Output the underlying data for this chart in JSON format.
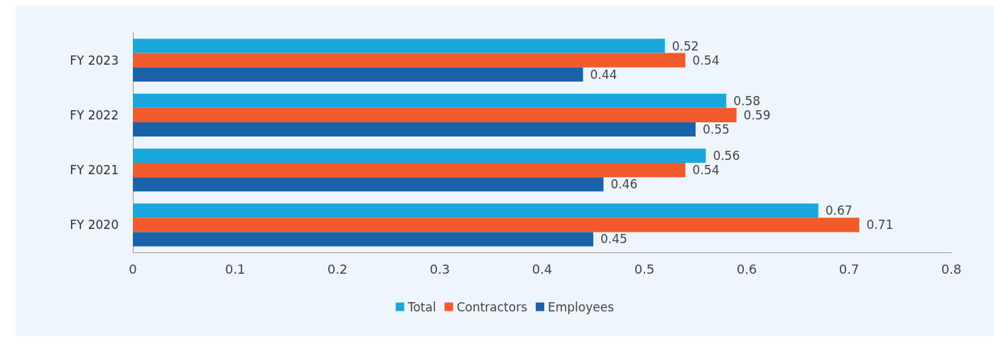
{
  "chart_data": {
    "type": "bar",
    "orientation": "horizontal",
    "categories": [
      "FY 2023",
      "FY 2022",
      "FY 2021",
      "FY 2020"
    ],
    "series": [
      {
        "name": "Total",
        "color": "#1aa7dc",
        "values": [
          0.52,
          0.58,
          0.56,
          0.67
        ]
      },
      {
        "name": "Contractors",
        "color": "#f15a2b",
        "values": [
          0.54,
          0.59,
          0.54,
          0.71
        ]
      },
      {
        "name": "Employees",
        "color": "#1a63a8",
        "values": [
          0.44,
          0.55,
          0.46,
          0.45
        ]
      }
    ],
    "xlim": [
      0,
      0.8
    ],
    "xticks": [
      0,
      0.1,
      0.2,
      0.3,
      0.4,
      0.5,
      0.6,
      0.7,
      0.8
    ],
    "grid": false,
    "legend": "bottom",
    "data_labels": true
  }
}
